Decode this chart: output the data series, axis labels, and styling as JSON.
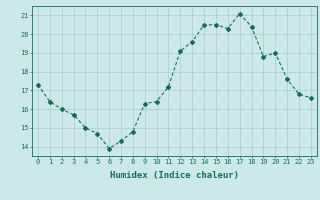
{
  "x": [
    0,
    1,
    2,
    3,
    4,
    5,
    6,
    7,
    8,
    9,
    10,
    11,
    12,
    13,
    14,
    15,
    16,
    17,
    18,
    19,
    20,
    21,
    22,
    23
  ],
  "y": [
    17.3,
    16.4,
    16.0,
    15.7,
    15.0,
    14.7,
    13.9,
    14.3,
    14.8,
    16.3,
    16.4,
    17.2,
    19.1,
    19.6,
    20.5,
    20.5,
    20.3,
    21.1,
    20.4,
    18.8,
    19.0,
    17.6,
    16.8,
    16.6
  ],
  "line_color": "#1a6b5e",
  "marker": "D",
  "marker_size": 2.0,
  "bg_color": "#cce8e8",
  "grid_color": "#aacccc",
  "xlabel": "Humidex (Indice chaleur)",
  "ylim": [
    13.5,
    21.5
  ],
  "xlim": [
    -0.5,
    23.5
  ],
  "yticks": [
    14,
    15,
    16,
    17,
    18,
    19,
    20,
    21
  ],
  "xticks": [
    0,
    1,
    2,
    3,
    4,
    5,
    6,
    7,
    8,
    9,
    10,
    11,
    12,
    13,
    14,
    15,
    16,
    17,
    18,
    19,
    20,
    21,
    22,
    23
  ],
  "tick_fontsize": 5.0,
  "xlabel_fontsize": 6.5,
  "linewidth": 0.8
}
